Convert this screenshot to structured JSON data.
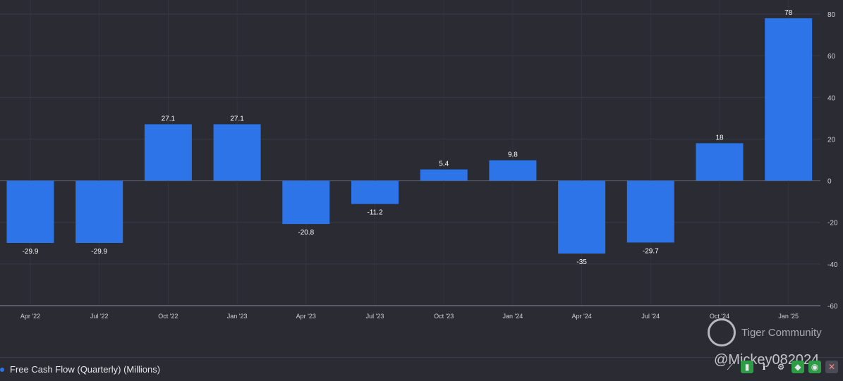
{
  "chart_data": {
    "type": "bar",
    "categories": [
      "Apr '22",
      "Jul '22",
      "Oct '22",
      "Jan '23",
      "Apr '23",
      "Jul '23",
      "Oct '23",
      "Jan '24",
      "Apr '24",
      "Jul '24",
      "Oct '24",
      "Jan '25"
    ],
    "values": [
      -29.9,
      -29.9,
      27.1,
      27.1,
      -20.8,
      -11.2,
      5.4,
      9.8,
      -35,
      -29.7,
      18,
      78
    ],
    "value_labels": [
      "-29.9",
      "-29.9",
      "27.1",
      "27.1",
      "-20.8",
      "-11.2",
      "5.4",
      "9.8",
      "-35",
      "-29.7",
      "18",
      "78"
    ],
    "yticks": [
      80,
      60,
      40,
      20,
      0,
      -20,
      -40,
      -60
    ],
    "ylim": [
      -60,
      80
    ],
    "grid": true,
    "bar_color": "#2c74e8",
    "series": [
      {
        "name": "Free Cash Flow (Quarterly) (Millions)"
      }
    ]
  },
  "legend": {
    "label": "Free Cash Flow (Quarterly) (Millions)"
  },
  "watermark": {
    "brand": "Tiger Community",
    "handle": "@Mickey082024"
  },
  "toolbar": {
    "icons": [
      "line-chart-icon",
      "bar-chart-icon",
      "info-icon",
      "gear-icon",
      "tag-icon",
      "eye-icon",
      "close-icon"
    ]
  }
}
